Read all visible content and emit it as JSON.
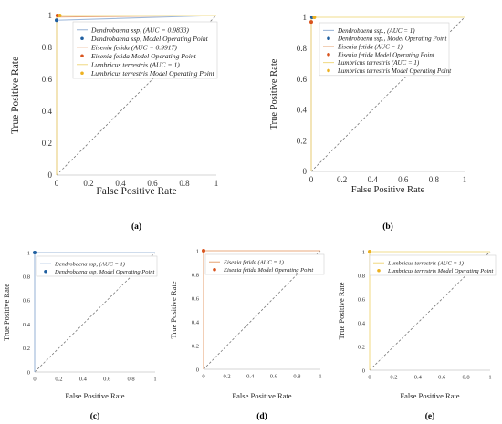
{
  "chart_data": [
    {
      "panel": "(a)",
      "type": "line",
      "xlabel": "False Positive Rate",
      "ylabel": "True Positive Rate",
      "xlim": [
        0,
        1
      ],
      "ylim": [
        0,
        1
      ],
      "xticks": [
        "0",
        "0.2",
        "0.4",
        "0.6",
        "0.8",
        "1"
      ],
      "yticks": [
        "0",
        "0.2",
        "0.4",
        "0.6",
        "0.8",
        "1"
      ],
      "grid": false,
      "legend_position": "top-right",
      "series": [
        {
          "name": "Dendrobaena ssp, (AUC = 0.9833)",
          "kind": "roc",
          "color": "#9fb8d9",
          "x": [
            0,
            0,
            1
          ],
          "y": [
            0,
            0.97,
            1
          ]
        },
        {
          "name": "Dendrobaena ssp, Model Operating Point",
          "kind": "point",
          "color": "#1f5fa0",
          "x": [
            0
          ],
          "y": [
            0.97
          ]
        },
        {
          "name": "Eisenia fetida (AUC = 0.9917)",
          "kind": "roc",
          "color": "#e8a87c",
          "x": [
            0,
            0,
            1
          ],
          "y": [
            0,
            0.99,
            1
          ]
        },
        {
          "name": "Eisenia fetida Model Operating Point",
          "kind": "point",
          "color": "#d9541e",
          "x": [
            0.005
          ],
          "y": [
            1
          ]
        },
        {
          "name": "Lumbricus terrestris (AUC = 1)",
          "kind": "roc",
          "color": "#f2dc8c",
          "x": [
            0,
            0,
            1
          ],
          "y": [
            0,
            1,
            1
          ]
        },
        {
          "name": "Lumbricus terrestris Model Operating Point",
          "kind": "point",
          "color": "#edb120",
          "x": [
            0.02
          ],
          "y": [
            1
          ]
        }
      ]
    },
    {
      "panel": "(b)",
      "type": "line",
      "xlabel": "False Positive Rate",
      "ylabel": "True Positive Rate",
      "xlim": [
        0,
        1
      ],
      "ylim": [
        0,
        1
      ],
      "xticks": [
        "0",
        "0.2",
        "0.4",
        "0.6",
        "0.8",
        "1"
      ],
      "yticks": [
        "0",
        "0.2",
        "0.4",
        "0.6",
        "0.8",
        "1"
      ],
      "grid": false,
      "legend_position": "top-right",
      "series": [
        {
          "name": "Dendrobaena ssp., (AUC = 1)",
          "kind": "roc",
          "color": "#9fb8d9",
          "x": [
            0,
            0,
            1
          ],
          "y": [
            0,
            1,
            1
          ]
        },
        {
          "name": "Dendrobaena ssp., Model Operating Point",
          "kind": "point",
          "color": "#1f5fa0",
          "x": [
            0.005
          ],
          "y": [
            1
          ]
        },
        {
          "name": "Eisenia fetida (AUC = 1)",
          "kind": "roc",
          "color": "#e8a87c",
          "x": [
            0,
            0,
            1
          ],
          "y": [
            0,
            1,
            1
          ]
        },
        {
          "name": "Eisenia fetida Model Operating Point",
          "kind": "point",
          "color": "#d9541e",
          "x": [
            0
          ],
          "y": [
            0.97
          ]
        },
        {
          "name": "Lumbricus terrestris (AUC = 1)",
          "kind": "roc",
          "color": "#f2dc8c",
          "x": [
            0,
            0,
            1
          ],
          "y": [
            0,
            1,
            1
          ]
        },
        {
          "name": "Lumbricus terrestris Model Operating Point",
          "kind": "point",
          "color": "#edb120",
          "x": [
            0.02
          ],
          "y": [
            1
          ]
        }
      ]
    },
    {
      "panel": "(c)",
      "type": "line",
      "xlabel": "False Positive Rate",
      "ylabel": "True Positive Rate",
      "xlim": [
        0,
        1
      ],
      "ylim": [
        0,
        1
      ],
      "xticks": [
        "0",
        "0.2",
        "0.4",
        "0.6",
        "0.8",
        "1"
      ],
      "yticks": [
        "0",
        "0.2",
        "0.4",
        "0.6",
        "0.8",
        "1"
      ],
      "grid": false,
      "legend_position": "top-right",
      "series": [
        {
          "name": "Dendrobaena ssp, (AUC = 1)",
          "kind": "roc",
          "color": "#9fb8d9",
          "x": [
            0,
            0,
            1
          ],
          "y": [
            0,
            1,
            1
          ]
        },
        {
          "name": "Dendrobaena ssp, Model Operating Point",
          "kind": "point",
          "color": "#1f5fa0",
          "x": [
            0
          ],
          "y": [
            1
          ]
        }
      ]
    },
    {
      "panel": "(d)",
      "type": "line",
      "xlabel": "False Positive Rate",
      "ylabel": "True Positive Rate",
      "xlim": [
        0,
        1
      ],
      "ylim": [
        0,
        1
      ],
      "xticks": [
        "0",
        "0.2",
        "0.4",
        "0.6",
        "0.8",
        "1"
      ],
      "yticks": [
        "0",
        "0.2",
        "0.4",
        "0.6",
        "0.8",
        "1"
      ],
      "grid": false,
      "legend_position": "top-right",
      "series": [
        {
          "name": "Eisenia fetida (AUC = 1)",
          "kind": "roc",
          "color": "#e8a87c",
          "x": [
            0,
            0,
            1
          ],
          "y": [
            0,
            1,
            1
          ]
        },
        {
          "name": "Eisenia fetida Model Operating Point",
          "kind": "point",
          "color": "#d9541e",
          "x": [
            0
          ],
          "y": [
            1
          ]
        }
      ]
    },
    {
      "panel": "(e)",
      "type": "line",
      "xlabel": "False Positive Rate",
      "ylabel": "True Positive Rate",
      "xlim": [
        0,
        1
      ],
      "ylim": [
        0,
        1
      ],
      "xticks": [
        "0",
        "0.2",
        "0.4",
        "0.6",
        "0.8",
        "1"
      ],
      "yticks": [
        "0",
        "0.2",
        "0.4",
        "0.6",
        "0.8",
        "1"
      ],
      "grid": false,
      "legend_position": "top-right",
      "series": [
        {
          "name": "Lumbricus terrestris (AUC = 1)",
          "kind": "roc",
          "color": "#f2dc8c",
          "x": [
            0,
            0,
            1
          ],
          "y": [
            0,
            1,
            1
          ]
        },
        {
          "name": "Lumbricus terrestris Model Operating Point",
          "kind": "point",
          "color": "#edb120",
          "x": [
            0
          ],
          "y": [
            1
          ]
        }
      ]
    }
  ]
}
